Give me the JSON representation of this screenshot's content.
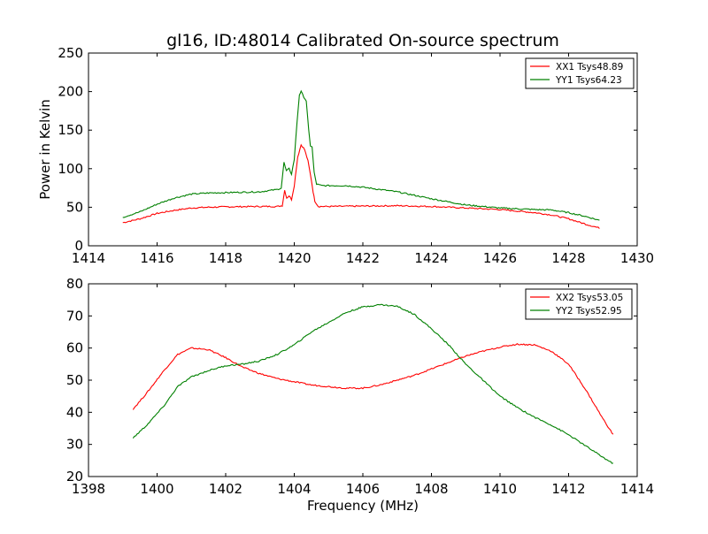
{
  "figure_title": "gl16, ID:48014 Calibrated On-source spectrum",
  "colors": {
    "xx": "#ff0000",
    "yy": "#008000"
  },
  "chart_data": [
    {
      "type": "line",
      "title": "gl16, ID:48014 Calibrated On-source spectrum",
      "xlabel": "",
      "ylabel": "Power in Kelvin",
      "xlim": [
        1414,
        1430
      ],
      "ylim": [
        0,
        250
      ],
      "xticks": [
        1414,
        1416,
        1418,
        1420,
        1422,
        1424,
        1426,
        1428,
        1430
      ],
      "yticks": [
        0,
        50,
        100,
        150,
        200,
        250
      ],
      "legend_position": "top-right",
      "grid": false,
      "series": [
        {
          "name": "XX1 Tsys48.89",
          "color": "#ff0000",
          "points": [
            [
              1415.0,
              30
            ],
            [
              1415.5,
              35
            ],
            [
              1416.0,
              42
            ],
            [
              1416.5,
              46
            ],
            [
              1417.0,
              49
            ],
            [
              1417.5,
              50
            ],
            [
              1418.0,
              50.5
            ],
            [
              1418.5,
              50.8
            ],
            [
              1419.0,
              51
            ],
            [
              1419.5,
              51
            ],
            [
              1419.65,
              52
            ],
            [
              1419.72,
              72
            ],
            [
              1419.78,
              62
            ],
            [
              1419.85,
              65
            ],
            [
              1419.92,
              60
            ],
            [
              1420.0,
              78
            ],
            [
              1420.1,
              115
            ],
            [
              1420.2,
              131
            ],
            [
              1420.3,
              125
            ],
            [
              1420.4,
              110
            ],
            [
              1420.5,
              85
            ],
            [
              1420.55,
              70
            ],
            [
              1420.6,
              58
            ],
            [
              1420.7,
              51
            ],
            [
              1421.0,
              51
            ],
            [
              1422.0,
              51.5
            ],
            [
              1423.0,
              52
            ],
            [
              1424.0,
              51
            ],
            [
              1425.0,
              49
            ],
            [
              1426.0,
              47
            ],
            [
              1427.0,
              43
            ],
            [
              1427.5,
              40
            ],
            [
              1428.0,
              35
            ],
            [
              1428.5,
              28
            ],
            [
              1428.9,
              23
            ]
          ]
        },
        {
          "name": "YY1 Tsys64.23",
          "color": "#008000",
          "points": [
            [
              1415.0,
              37
            ],
            [
              1415.5,
              44
            ],
            [
              1416.0,
              54
            ],
            [
              1416.5,
              62
            ],
            [
              1417.0,
              67
            ],
            [
              1417.5,
              68.5
            ],
            [
              1418.0,
              69
            ],
            [
              1418.5,
              69.5
            ],
            [
              1419.0,
              70
            ],
            [
              1419.5,
              73
            ],
            [
              1419.62,
              75
            ],
            [
              1419.7,
              108
            ],
            [
              1419.77,
              97
            ],
            [
              1419.85,
              100
            ],
            [
              1419.92,
              93
            ],
            [
              1420.0,
              112
            ],
            [
              1420.08,
              160
            ],
            [
              1420.15,
              196
            ],
            [
              1420.2,
              200
            ],
            [
              1420.28,
              193
            ],
            [
              1420.35,
              188
            ],
            [
              1420.42,
              150
            ],
            [
              1420.47,
              130
            ],
            [
              1420.52,
              128
            ],
            [
              1420.58,
              95
            ],
            [
              1420.65,
              80
            ],
            [
              1420.8,
              78
            ],
            [
              1421.5,
              78
            ],
            [
              1422.0,
              76
            ],
            [
              1423.0,
              70
            ],
            [
              1424.0,
              61
            ],
            [
              1425.0,
              53
            ],
            [
              1426.0,
              49
            ],
            [
              1427.0,
              47
            ],
            [
              1427.5,
              46.5
            ],
            [
              1428.0,
              43
            ],
            [
              1428.5,
              38
            ],
            [
              1428.9,
              33
            ]
          ]
        }
      ]
    },
    {
      "type": "line",
      "title": "",
      "xlabel": "Frequency (MHz)",
      "ylabel": "",
      "xlim": [
        1398,
        1414
      ],
      "ylim": [
        20,
        80
      ],
      "xticks": [
        1398,
        1400,
        1402,
        1404,
        1406,
        1408,
        1410,
        1412,
        1414
      ],
      "yticks": [
        20,
        30,
        40,
        50,
        60,
        70,
        80
      ],
      "legend_position": "top-right",
      "grid": false,
      "series": [
        {
          "name": "XX2 Tsys53.05",
          "color": "#ff0000",
          "points": [
            [
              1399.3,
              41
            ],
            [
              1399.7,
              46
            ],
            [
              1400.2,
              53
            ],
            [
              1400.6,
              58
            ],
            [
              1401.0,
              60
            ],
            [
              1401.5,
              59.5
            ],
            [
              1402.0,
              57
            ],
            [
              1402.5,
              54
            ],
            [
              1403.0,
              52
            ],
            [
              1403.5,
              50.5
            ],
            [
              1404.0,
              49.5
            ],
            [
              1404.5,
              48.5
            ],
            [
              1405.0,
              48
            ],
            [
              1405.5,
              47.5
            ],
            [
              1406.0,
              47.5
            ],
            [
              1406.5,
              48.5
            ],
            [
              1407.0,
              50
            ],
            [
              1407.5,
              51.5
            ],
            [
              1408.0,
              53.5
            ],
            [
              1408.5,
              55.5
            ],
            [
              1409.0,
              57.5
            ],
            [
              1409.5,
              59
            ],
            [
              1410.0,
              60.3
            ],
            [
              1410.5,
              61.2
            ],
            [
              1411.0,
              61
            ],
            [
              1411.5,
              59
            ],
            [
              1412.0,
              55
            ],
            [
              1412.5,
              47
            ],
            [
              1413.0,
              38
            ],
            [
              1413.3,
              33
            ]
          ]
        },
        {
          "name": "YY2 Tsys52.95",
          "color": "#008000",
          "points": [
            [
              1399.3,
              32
            ],
            [
              1399.7,
              36
            ],
            [
              1400.2,
              42
            ],
            [
              1400.6,
              48
            ],
            [
              1401.0,
              51
            ],
            [
              1401.5,
              53
            ],
            [
              1402.0,
              54.5
            ],
            [
              1402.5,
              55
            ],
            [
              1403.0,
              56
            ],
            [
              1403.5,
              58
            ],
            [
              1404.0,
              61
            ],
            [
              1404.5,
              65
            ],
            [
              1405.0,
              68
            ],
            [
              1405.5,
              71
            ],
            [
              1406.0,
              72.8
            ],
            [
              1406.5,
              73.5
            ],
            [
              1407.0,
              73
            ],
            [
              1407.5,
              70.5
            ],
            [
              1408.0,
              66
            ],
            [
              1408.5,
              61
            ],
            [
              1409.0,
              55
            ],
            [
              1409.5,
              50
            ],
            [
              1410.0,
              45
            ],
            [
              1410.5,
              41.5
            ],
            [
              1411.0,
              38.5
            ],
            [
              1411.5,
              36
            ],
            [
              1412.0,
              33
            ],
            [
              1412.5,
              29.5
            ],
            [
              1413.0,
              26
            ],
            [
              1413.3,
              24
            ]
          ]
        }
      ]
    }
  ]
}
